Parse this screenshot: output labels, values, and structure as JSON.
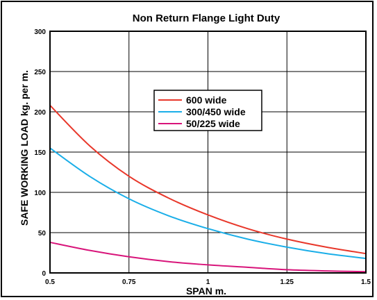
{
  "chart_data": {
    "type": "line",
    "title": "Non Return Flange Light Duty",
    "xlabel": "SPAN m.",
    "ylabel": "SAFE WORKING LOAD kg. per m.",
    "xlim": [
      0.5,
      1.5
    ],
    "ylim": [
      0,
      300
    ],
    "x_ticks": [
      "0.5",
      "0.75",
      "1",
      "1.25",
      "1.5"
    ],
    "y_ticks": [
      "0",
      "50",
      "100",
      "150",
      "200",
      "250",
      "300"
    ],
    "grid": true,
    "legend_position": "center-upper",
    "x": [
      0.5,
      0.625,
      0.75,
      0.875,
      1.0,
      1.125,
      1.25,
      1.375,
      1.5
    ],
    "series": [
      {
        "name": "600 wide",
        "color": "#e8372a",
        "values": [
          208,
          158,
          120,
          93,
          72,
          55,
          42,
          32,
          24
        ]
      },
      {
        "name": "300/450 wide",
        "color": "#1aaee8",
        "values": [
          155,
          120,
          92,
          71,
          55,
          42,
          32,
          24,
          18
        ]
      },
      {
        "name": "50/225 wide",
        "color": "#d8147a",
        "values": [
          38,
          28,
          20,
          14,
          10,
          7,
          4,
          2.5,
          1.5
        ]
      }
    ]
  }
}
